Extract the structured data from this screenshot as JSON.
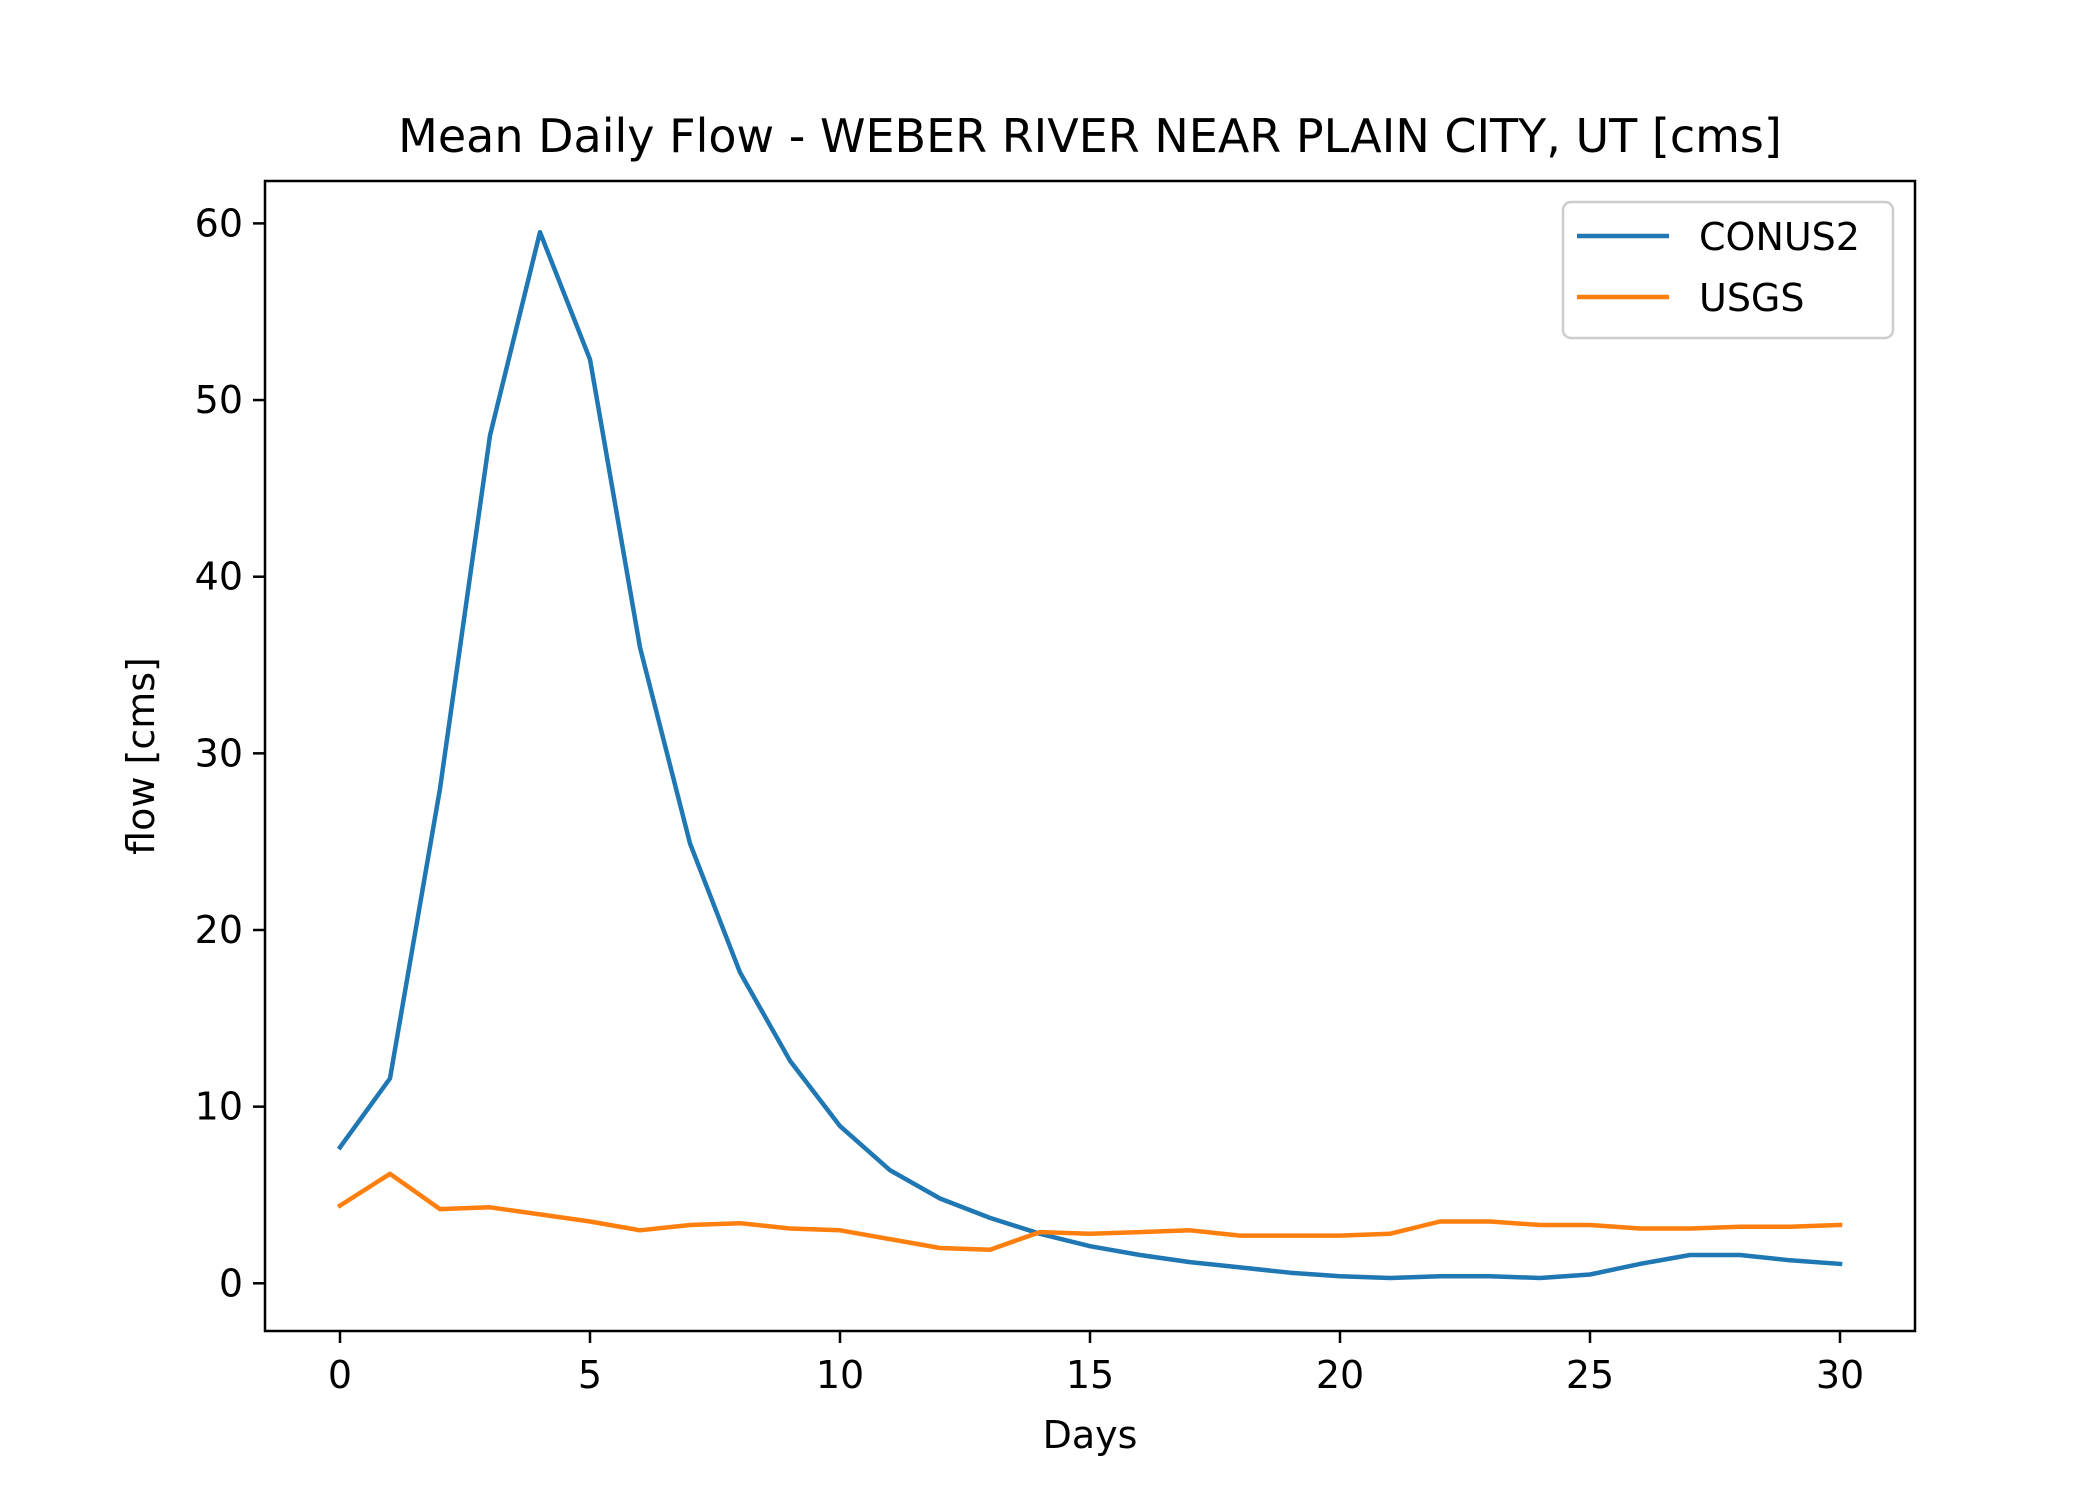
{
  "chart_data": {
    "type": "line",
    "title": "Mean Daily Flow - WEBER RIVER NEAR PLAIN CITY, UT [cms]",
    "xlabel": "Days",
    "ylabel": "flow [cms]",
    "xlim": [
      -1.5,
      31.5
    ],
    "ylim": [
      -2.7,
      62.4
    ],
    "xticks": [
      0,
      5,
      10,
      15,
      20,
      25,
      30
    ],
    "yticks": [
      0,
      10,
      20,
      30,
      40,
      50,
      60
    ],
    "grid": false,
    "legend_position": "top-right",
    "x": [
      0,
      1,
      2,
      3,
      4,
      5,
      6,
      7,
      8,
      9,
      10,
      11,
      12,
      13,
      14,
      15,
      16,
      17,
      18,
      19,
      20,
      21,
      22,
      23,
      24,
      25,
      26,
      27,
      28,
      29,
      30
    ],
    "series": [
      {
        "name": "CONUS2",
        "color": "#1f77b4",
        "values": [
          7.7,
          11.6,
          28.0,
          48.0,
          59.5,
          52.3,
          36.0,
          24.9,
          17.6,
          12.6,
          8.9,
          6.4,
          4.8,
          3.7,
          2.8,
          2.1,
          1.6,
          1.2,
          0.9,
          0.6,
          0.4,
          0.3,
          0.4,
          0.4,
          0.3,
          0.5,
          1.1,
          1.6,
          1.6,
          1.3,
          1.1
        ]
      },
      {
        "name": "USGS",
        "color": "#ff7f0e",
        "values": [
          4.4,
          6.2,
          4.2,
          4.3,
          3.9,
          3.5,
          3.0,
          3.3,
          3.4,
          3.1,
          3.0,
          2.5,
          2.0,
          1.9,
          2.9,
          2.8,
          2.9,
          3.0,
          2.7,
          2.7,
          2.7,
          2.8,
          3.5,
          3.5,
          3.3,
          3.3,
          3.1,
          3.1,
          3.2,
          3.2,
          3.3
        ]
      }
    ]
  }
}
